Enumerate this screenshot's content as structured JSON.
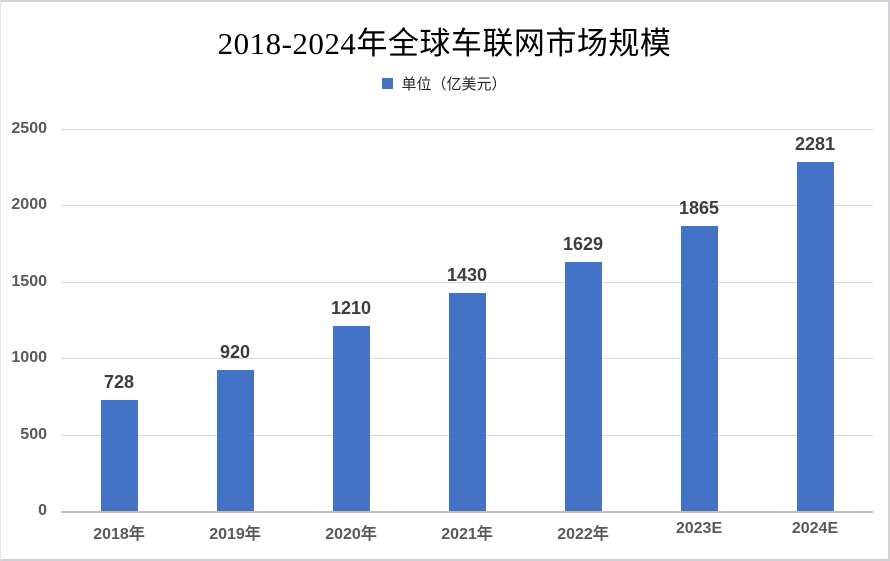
{
  "chart_data": {
    "type": "bar",
    "title": "2018-2024年全球车联网市场规模",
    "legend": "单位（亿美元）",
    "categories": [
      "2018年",
      "2019年",
      "2020年",
      "2021年",
      "2022年",
      "2023E",
      "2024E"
    ],
    "values": [
      728,
      920,
      1210,
      1430,
      1629,
      1865,
      2281
    ],
    "xlabel": "",
    "ylabel": "",
    "ylim": [
      0,
      2500
    ],
    "yticks": [
      0,
      500,
      1000,
      1500,
      2000,
      2500
    ],
    "grid": true,
    "legend_position": "top",
    "bar_color": "#4472C4",
    "gridline_color": "#D9D9D9",
    "axis_line_color": "#BFBFBF",
    "label_color": "#3D3D3D",
    "tick_color": "#595959"
  }
}
